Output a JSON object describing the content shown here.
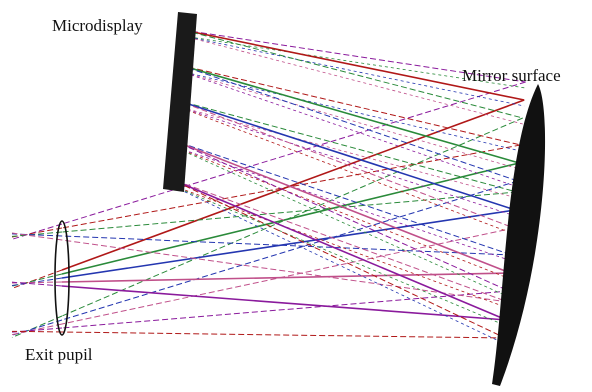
{
  "labels": {
    "microdisplay": "Microdisplay",
    "mirror": "Mirror surface",
    "pupil": "Exit pupil"
  }
}
